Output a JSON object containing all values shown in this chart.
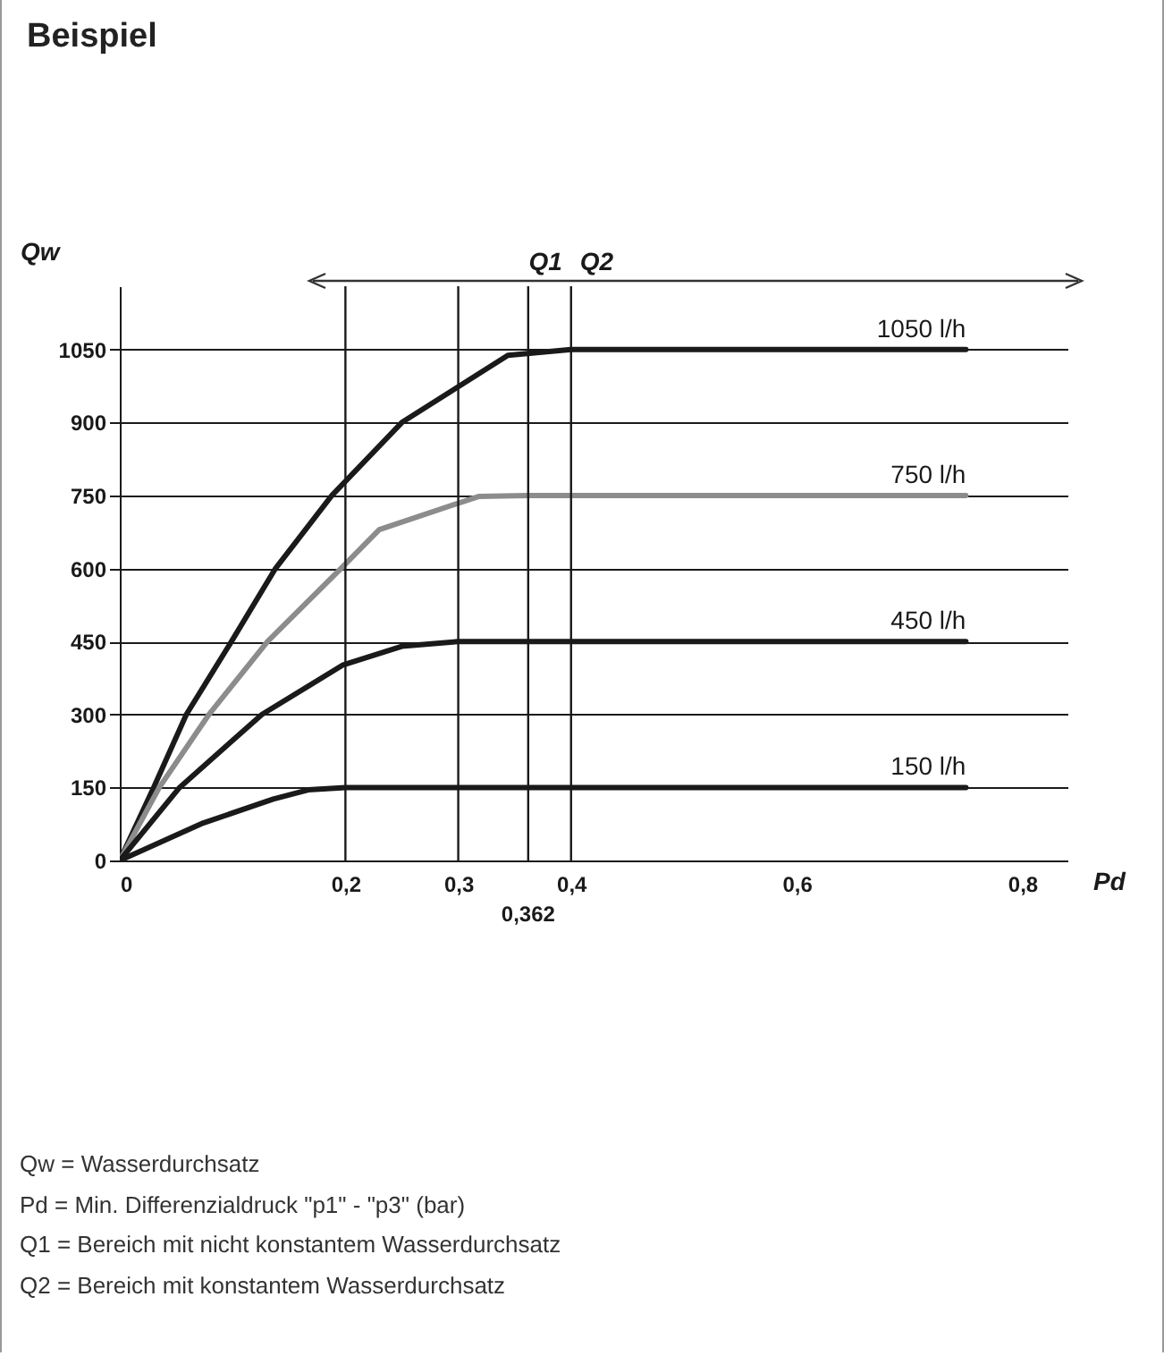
{
  "chart_data": {
    "type": "line",
    "title": "Beispiel",
    "xlabel": "Pd",
    "ylabel": "Qw",
    "xlim": [
      0,
      0.84
    ],
    "ylim": [
      0,
      1180
    ],
    "xticks": [
      0,
      {
        "value": 0.2,
        "label": "0,2"
      },
      {
        "value": 0.3,
        "label": "0,3"
      },
      {
        "value": 0.4,
        "label": "0,4"
      },
      {
        "value": 0.6,
        "label": "0,6"
      },
      {
        "value": 0.8,
        "label": "0,8"
      }
    ],
    "yticks": [
      0,
      150,
      300,
      450,
      600,
      750,
      900,
      1050
    ],
    "grid": "y",
    "series": [
      {
        "name": "1050 l/h",
        "color": "#1a1a1a",
        "x": [
          0,
          0.03,
          0.059,
          0.099,
          0.138,
          0.188,
          0.25,
          0.344,
          0.4,
          0.75
        ],
        "values": [
          0,
          150,
          300,
          450,
          600,
          750,
          900,
          1038,
          1050,
          1050
        ]
      },
      {
        "name": "750 l/h",
        "color": "#8c8c8c",
        "x": [
          0,
          0.035,
          0.079,
          0.131,
          0.196,
          0.23,
          0.318,
          0.362,
          0.75
        ],
        "values": [
          0,
          150,
          300,
          450,
          600,
          680,
          748,
          750,
          750
        ]
      },
      {
        "name": "450 l/h",
        "color": "#1a1a1a",
        "x": [
          0,
          0.053,
          0.126,
          0.198,
          0.25,
          0.3,
          0.75
        ],
        "values": [
          0,
          150,
          300,
          402,
          440,
          450,
          450
        ]
      },
      {
        "name": "150 l/h",
        "color": "#1a1a1a",
        "x": [
          0,
          0.074,
          0.136,
          0.167,
          0.2,
          0.75
        ],
        "values": [
          0,
          77,
          126,
          145,
          150,
          150
        ]
      }
    ],
    "ref_lines": [
      {
        "axis": "x",
        "value": 0.2
      },
      {
        "axis": "x",
        "value": 0.3
      },
      {
        "axis": "x",
        "value": 0.362,
        "label": "0,362"
      },
      {
        "axis": "x",
        "value": 0.4
      }
    ],
    "annotations": [
      {
        "text": "Q1",
        "x": 0.4,
        "y": 1180
      },
      {
        "text": "Q2",
        "x": 0.4,
        "y": 1180
      },
      "Qw = Wasserdurchsatz",
      "Pd = Min. Differenzialdruck \"p1\" - \"p3\" (bar)",
      "Q1 = Bereich mit nicht konstantem Wasserdurchsatz",
      "Q2 = Bereich mit konstantem Wasserdurchsatz"
    ]
  }
}
